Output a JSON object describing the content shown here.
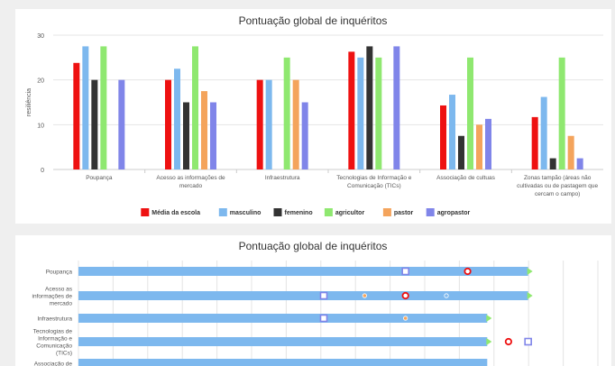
{
  "chart_data": [
    {
      "type": "bar",
      "title": "Pontuação global de inquéritos",
      "ylabel": "resiliência",
      "ylim": [
        0,
        30
      ],
      "yticks": [
        0,
        10,
        20,
        30
      ],
      "grid": true,
      "legend_position": "bottom",
      "categories": [
        [
          "Poupança"
        ],
        [
          "Acesso as informações de",
          "mercado"
        ],
        [
          "Infraestrutura"
        ],
        [
          "Tecnologias de Informação e",
          "Comunicação (TICs)"
        ],
        [
          "Associação de cultuas"
        ],
        [
          "Zonas tampão (áreas não",
          "cultivadas ou de pastagem que",
          "cercam o campo)"
        ]
      ],
      "series": [
        {
          "name": "Média da escola",
          "color": "#ee1111",
          "values": [
            23.8,
            20.0,
            20.0,
            26.3,
            14.3,
            11.7
          ]
        },
        {
          "name": "masculino",
          "color": "#7db8ee",
          "values": [
            27.5,
            22.5,
            20.0,
            25.0,
            16.7,
            16.2
          ]
        },
        {
          "name": "femenino",
          "color": "#333333",
          "values": [
            20.0,
            15.0,
            0,
            27.5,
            7.5,
            2.5
          ]
        },
        {
          "name": "agricultor",
          "color": "#8fe870",
          "values": [
            27.5,
            27.5,
            25.0,
            25.0,
            25.0,
            25.0
          ]
        },
        {
          "name": "pastor",
          "color": "#f4a45c",
          "values": [
            0,
            17.5,
            20.0,
            0,
            10.0,
            7.5
          ]
        },
        {
          "name": "agropastor",
          "color": "#8085e9",
          "values": [
            20.0,
            15.0,
            15.0,
            27.5,
            11.3,
            2.5
          ]
        }
      ]
    },
    {
      "type": "bar",
      "orientation": "horizontal",
      "title": "Pontuação global de inquéritos",
      "xlim": [
        0,
        30
      ],
      "categories": [
        [
          "Poupança"
        ],
        [
          "Acesso as",
          "informações de",
          "mercado"
        ],
        [
          "Infraestrutura"
        ],
        [
          "Tecnologias de",
          "Informação e",
          "Comunicação",
          "(TICs)"
        ],
        [
          "Associação de"
        ]
      ],
      "bar_color": "#7db8ee",
      "values": [
        27.5,
        27.5,
        25.0,
        25.0,
        25.0
      ],
      "markers": [
        {
          "name": "Média da escola",
          "color": "#ee1111",
          "shape": "ring",
          "values": [
            23.8,
            20.0,
            null,
            26.3,
            null
          ]
        },
        {
          "name": "agropastor",
          "color": "#8085e9",
          "shape": "square",
          "values": [
            20.0,
            15.0,
            15.0,
            27.5,
            null
          ]
        },
        {
          "name": "pastor",
          "color": "#f4a45c",
          "shape": "dot",
          "values": [
            null,
            17.5,
            20.0,
            null,
            null
          ]
        },
        {
          "name": "masculino",
          "color": "#7db8ee",
          "shape": "dot",
          "values": [
            null,
            22.5,
            null,
            null,
            null
          ]
        },
        {
          "name": "agricultor",
          "color": "#8fe870",
          "shape": "triangle",
          "values": [
            27.5,
            27.5,
            25.0,
            25.0,
            null
          ]
        }
      ]
    }
  ]
}
